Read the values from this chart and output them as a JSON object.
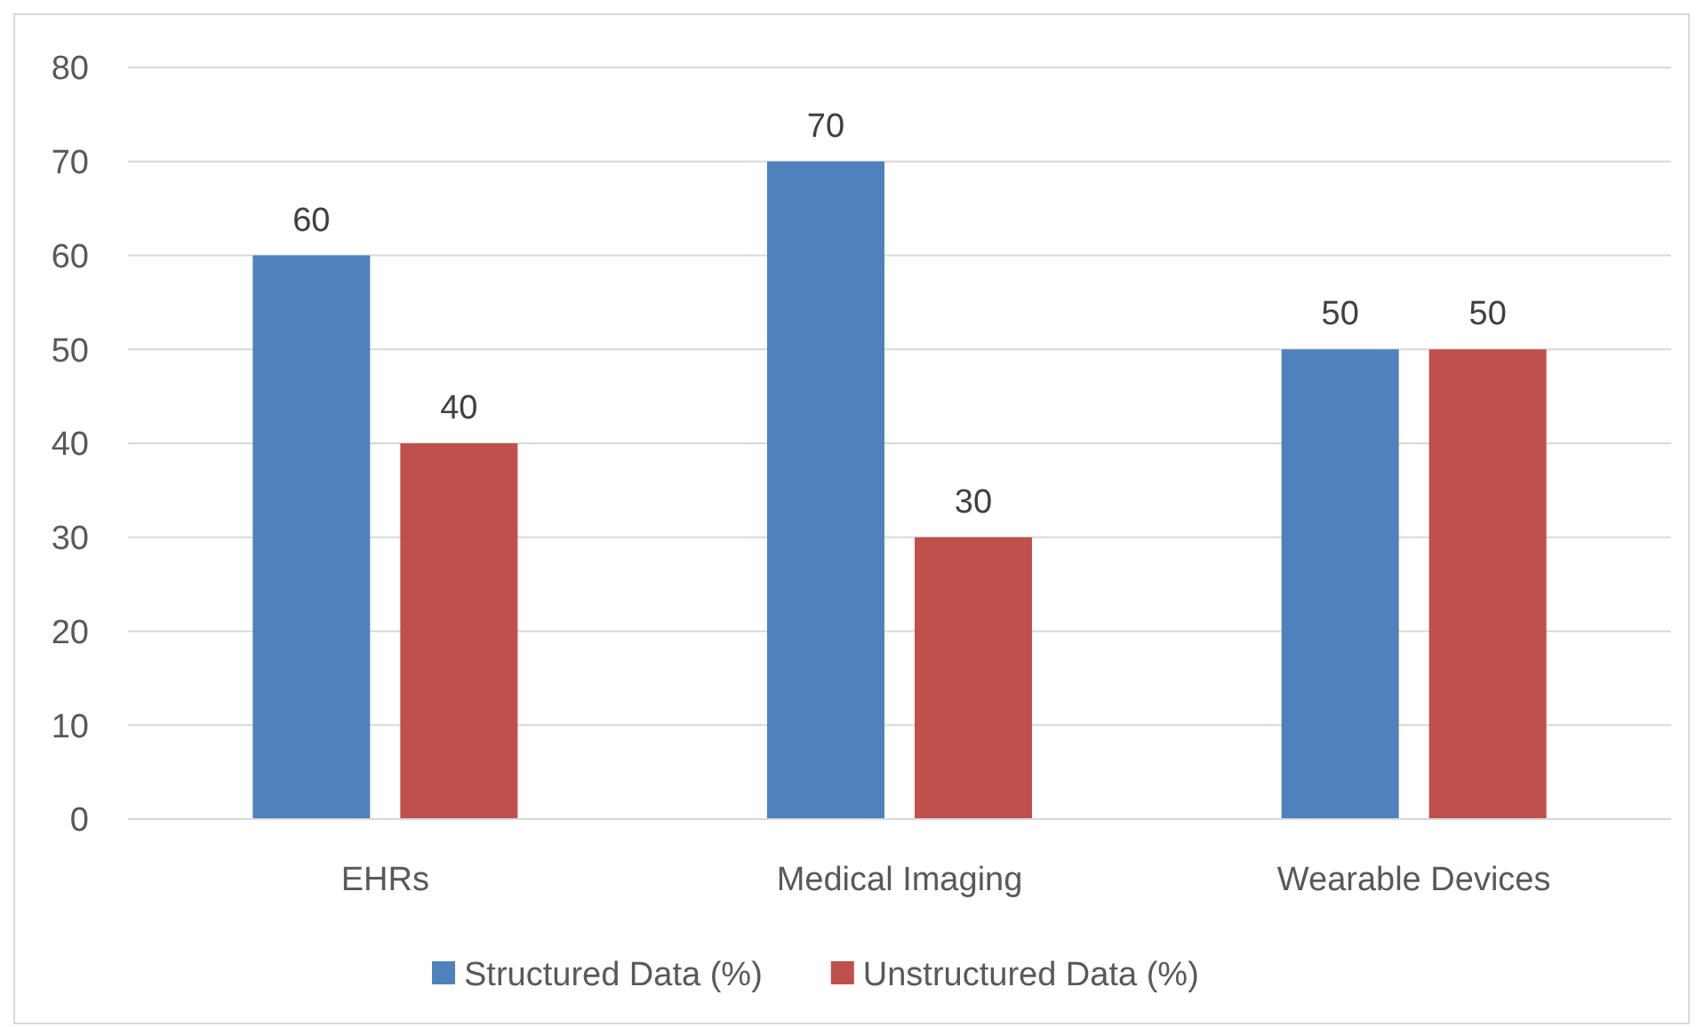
{
  "chart_data": {
    "type": "bar",
    "categories": [
      "EHRs",
      "Medical Imaging",
      "Wearable Devices"
    ],
    "series": [
      {
        "name": "Structured Data (%)",
        "color": "#4f81bd",
        "values": [
          60,
          70,
          50
        ]
      },
      {
        "name": "Unstructured Data (%)",
        "color": "#c0504d",
        "values": [
          40,
          30,
          50
        ]
      }
    ],
    "ylim": [
      0,
      80
    ],
    "yticks": [
      0,
      10,
      20,
      30,
      40,
      50,
      60,
      70,
      80
    ],
    "grid": "y",
    "legend": "bottom",
    "data_labels": true
  }
}
